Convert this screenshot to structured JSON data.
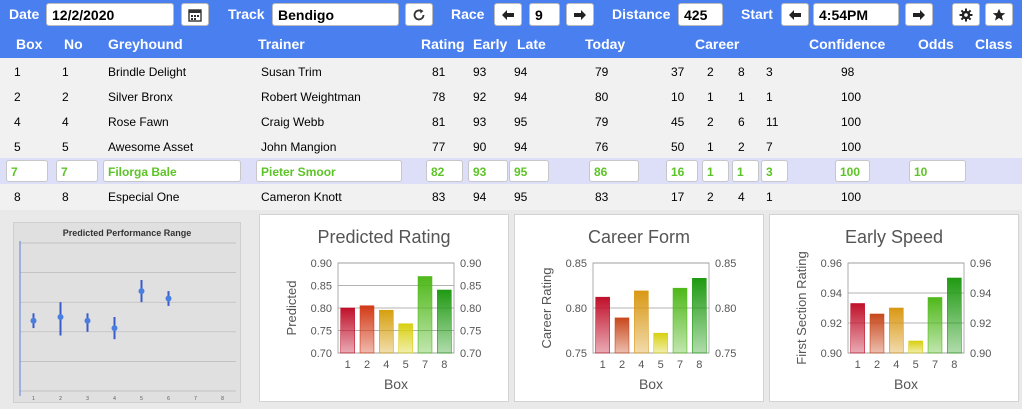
{
  "toolbar": {
    "date_label": "Date",
    "date_value": "12/2/2020",
    "track_label": "Track",
    "track_value": "Bendigo",
    "race_label": "Race",
    "race_value": "9",
    "distance_label": "Distance",
    "distance_value": "425",
    "start_label": "Start",
    "start_value": "4:54PM"
  },
  "table": {
    "headers": {
      "box": "Box",
      "no": "No",
      "greyhound": "Greyhound",
      "trainer": "Trainer",
      "rating": "Rating",
      "early": "Early",
      "late": "Late",
      "today": "Today",
      "career": "Career",
      "confidence": "Confidence",
      "odds": "Odds",
      "class": "Class"
    },
    "rows": [
      {
        "box": "1",
        "no": "1",
        "greyhound": "Brindle Delight",
        "trainer": "Susan Trim",
        "rating": "81",
        "early": "93",
        "late": "94",
        "today": "79",
        "c1": "37",
        "c2": "2",
        "c3": "8",
        "c4": "3",
        "confidence": "98",
        "odds": ""
      },
      {
        "box": "2",
        "no": "2",
        "greyhound": "Silver Bronx",
        "trainer": "Robert Weightman",
        "rating": "78",
        "early": "92",
        "late": "94",
        "today": "80",
        "c1": "10",
        "c2": "1",
        "c3": "1",
        "c4": "1",
        "confidence": "100",
        "odds": ""
      },
      {
        "box": "4",
        "no": "4",
        "greyhound": "Rose Fawn",
        "trainer": "Craig Webb",
        "rating": "81",
        "early": "93",
        "late": "95",
        "today": "79",
        "c1": "45",
        "c2": "2",
        "c3": "6",
        "c4": "11",
        "confidence": "100",
        "odds": ""
      },
      {
        "box": "5",
        "no": "5",
        "greyhound": "Awesome Asset",
        "trainer": "John Mangion",
        "rating": "77",
        "early": "90",
        "late": "94",
        "today": "76",
        "c1": "50",
        "c2": "1",
        "c3": "2",
        "c4": "7",
        "confidence": "100",
        "odds": ""
      },
      {
        "box": "7",
        "no": "7",
        "greyhound": "Filorga Bale",
        "trainer": "Pieter Smoor",
        "rating": "82",
        "early": "93",
        "late": "95",
        "today": "86",
        "c1": "16",
        "c2": "1",
        "c3": "1",
        "c4": "3",
        "confidence": "100",
        "odds": "10"
      },
      {
        "box": "8",
        "no": "8",
        "greyhound": "Especial One",
        "trainer": "Cameron Knott",
        "rating": "83",
        "early": "94",
        "late": "95",
        "today": "83",
        "c1": "17",
        "c2": "2",
        "c3": "4",
        "c4": "1",
        "confidence": "100",
        "odds": ""
      }
    ]
  },
  "colors": {
    "accent": "#4a7ff0",
    "selected_text": "#5dc427",
    "selected_row": "#dcdff7"
  },
  "icons": [
    "calendar-icon",
    "refresh-icon",
    "arrow-left-icon",
    "arrow-right-icon",
    "gear-icon",
    "star-icon"
  ],
  "chart_data": [
    {
      "type": "scatter",
      "title": "Predicted Performance Range",
      "x": [
        1,
        2,
        3,
        4,
        5,
        6,
        7,
        8
      ],
      "points": [
        {
          "x": 1,
          "mid": 0.79,
          "low": 0.77,
          "high": 0.81
        },
        {
          "x": 2,
          "mid": 0.8,
          "low": 0.75,
          "high": 0.84
        },
        {
          "x": 3,
          "mid": 0.79,
          "low": 0.76,
          "high": 0.81
        },
        {
          "x": 4,
          "mid": 0.77,
          "low": 0.74,
          "high": 0.8
        },
        {
          "x": 5,
          "mid": 0.87,
          "low": 0.84,
          "high": 0.9
        },
        {
          "x": 6,
          "mid": 0.85,
          "low": 0.83,
          "high": 0.87
        }
      ],
      "ylim": [
        0.6,
        1.0
      ],
      "xlim": [
        0.5,
        8.5
      ]
    },
    {
      "type": "bar",
      "title": "Predicted Rating",
      "xlabel": "Box",
      "ylabel": "Predicted",
      "categories": [
        "1",
        "2",
        "4",
        "5",
        "7",
        "8"
      ],
      "values": [
        0.8,
        0.805,
        0.795,
        0.765,
        0.87,
        0.84
      ],
      "ylim": [
        0.7,
        0.9
      ],
      "yticks": [
        "0.70",
        "0.75",
        "0.80",
        "0.85",
        "0.90"
      ],
      "colors": [
        "#c0102a",
        "#d23a16",
        "#d6a010",
        "#d8d010",
        "#4fb81a",
        "#1f9a12"
      ]
    },
    {
      "type": "bar",
      "title": "Career Form",
      "xlabel": "Box",
      "ylabel": "Career Rating",
      "categories": [
        "1",
        "2",
        "4",
        "5",
        "7",
        "8"
      ],
      "values": [
        0.812,
        0.789,
        0.819,
        0.772,
        0.822,
        0.833
      ],
      "ylim": [
        0.75,
        0.85
      ],
      "yticks": [
        "0.75",
        "0.80",
        "0.85"
      ],
      "colors": [
        "#c0102a",
        "#c8481c",
        "#d99814",
        "#d8d010",
        "#4fb81a",
        "#1f9a12"
      ]
    },
    {
      "type": "bar",
      "title": "Early Speed",
      "xlabel": "Box",
      "ylabel": "First Section Rating",
      "categories": [
        "1",
        "2",
        "4",
        "5",
        "7",
        "8"
      ],
      "values": [
        0.933,
        0.926,
        0.93,
        0.908,
        0.937,
        0.95
      ],
      "ylim": [
        0.9,
        0.96
      ],
      "yticks": [
        "0.90",
        "0.92",
        "0.94",
        "0.96"
      ],
      "colors": [
        "#c0102a",
        "#c8481c",
        "#d99814",
        "#d8d010",
        "#4fb81a",
        "#1f9a12"
      ]
    }
  ]
}
